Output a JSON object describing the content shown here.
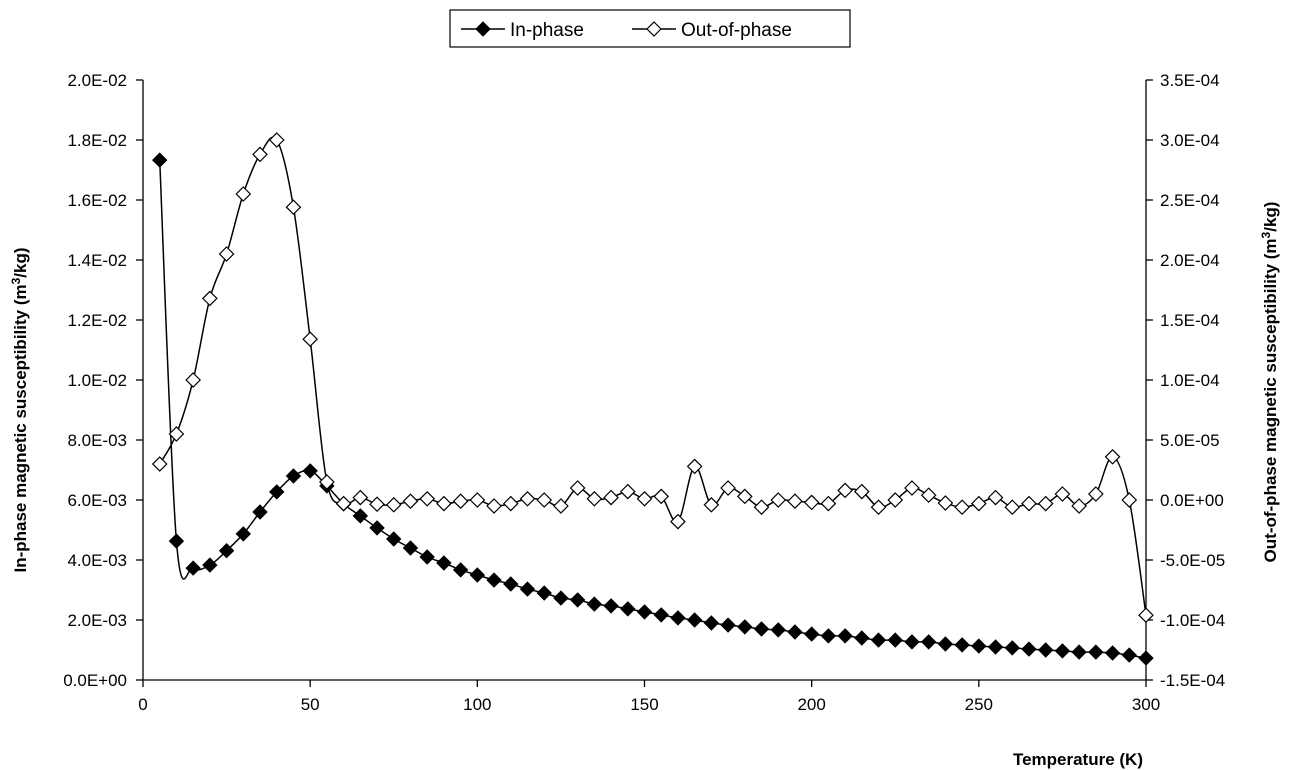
{
  "chart_data": {
    "type": "line",
    "title": "",
    "xlabel": "Temperature (K)",
    "ylabel_left": "In-phase magnetic susceptibility (m",
    "ylabel_left_sup": "3",
    "ylabel_left_end": "/kg)",
    "ylabel_right": "Out-of-phase magnetic susceptibility (m",
    "ylabel_right_sup": "3",
    "ylabel_right_end": "/kg)",
    "xlim": [
      0,
      300
    ],
    "ylim_left": [
      0,
      0.02
    ],
    "ylim_right": [
      -0.00015,
      0.00035
    ],
    "x_ticks": [
      "0",
      "50",
      "100",
      "150",
      "200",
      "250",
      "300"
    ],
    "y_left_ticks": [
      "0.0E+00",
      "2.0E-03",
      "4.0E-03",
      "6.0E-03",
      "8.0E-03",
      "1.0E-02",
      "1.2E-02",
      "1.4E-02",
      "1.6E-02",
      "1.8E-02",
      "2.0E-02"
    ],
    "y_right_ticks": [
      "-1.5E-04",
      "-1.0E-04",
      "-5.0E-05",
      "0.0E+00",
      "5.0E-05",
      "1.0E-04",
      "1.5E-04",
      "2.0E-04",
      "2.5E-04",
      "3.0E-04",
      "3.5E-04"
    ],
    "legend_position": "top-center",
    "grid": false,
    "series": [
      {
        "name": "In-phase",
        "axis": "left",
        "marker": "filled-diamond",
        "x": [
          5,
          10,
          15,
          20,
          25,
          30,
          35,
          40,
          45,
          50,
          55,
          60,
          65,
          70,
          75,
          80,
          85,
          90,
          95,
          100,
          105,
          110,
          115,
          120,
          125,
          130,
          135,
          140,
          145,
          150,
          155,
          160,
          165,
          170,
          175,
          180,
          185,
          190,
          195,
          200,
          205,
          210,
          215,
          220,
          225,
          230,
          235,
          240,
          245,
          250,
          255,
          260,
          265,
          270,
          275,
          280,
          285,
          290,
          295,
          300
        ],
        "values": [
          0.01733,
          0.00463,
          0.00373,
          0.00383,
          0.00431,
          0.00487,
          0.0056,
          0.00627,
          0.0068,
          0.00697,
          0.00647,
          0.00587,
          0.00547,
          0.00507,
          0.0047,
          0.0044,
          0.0041,
          0.0039,
          0.00367,
          0.0035,
          0.00333,
          0.0032,
          0.00303,
          0.0029,
          0.00273,
          0.00267,
          0.00253,
          0.00247,
          0.00237,
          0.00227,
          0.00217,
          0.00207,
          0.002,
          0.0019,
          0.00183,
          0.00177,
          0.0017,
          0.00167,
          0.0016,
          0.00153,
          0.00147,
          0.00147,
          0.0014,
          0.00133,
          0.00133,
          0.00127,
          0.00127,
          0.0012,
          0.00117,
          0.00113,
          0.0011,
          0.00107,
          0.00103,
          0.001,
          0.00097,
          0.00093,
          0.00093,
          0.0009,
          0.00083,
          0.00073
        ]
      },
      {
        "name": "Out-of-phase",
        "axis": "right",
        "marker": "open-diamond",
        "x": [
          5,
          10,
          15,
          20,
          25,
          30,
          35,
          40,
          45,
          50,
          55,
          60,
          65,
          70,
          75,
          80,
          85,
          90,
          95,
          100,
          105,
          110,
          115,
          120,
          125,
          130,
          135,
          140,
          145,
          150,
          155,
          160,
          165,
          170,
          175,
          180,
          185,
          190,
          195,
          200,
          205,
          210,
          215,
          220,
          225,
          230,
          235,
          240,
          245,
          250,
          255,
          260,
          265,
          270,
          275,
          280,
          285,
          290,
          295,
          300
        ],
        "values": [
          3e-05,
          5.5e-05,
          0.0001,
          0.000168,
          0.000205,
          0.000255,
          0.000288,
          0.0003,
          0.000244,
          0.000134,
          1.5e-05,
          -3e-06,
          2e-06,
          -3.5e-06,
          -4e-06,
          -1e-06,
          1e-06,
          -3e-06,
          -1e-06,
          0.0,
          -5e-06,
          -3e-06,
          1e-06,
          0.0,
          -5e-06,
          1e-05,
          1e-06,
          2e-06,
          7e-06,
          1e-06,
          3e-06,
          -1.8e-05,
          2.8e-05,
          -4e-06,
          1e-05,
          3e-06,
          -6e-06,
          0.0,
          -1e-06,
          -2e-06,
          -3e-06,
          8e-06,
          7e-06,
          -6e-06,
          0.0,
          1e-05,
          4e-06,
          -2.5e-06,
          -6e-06,
          -3e-06,
          2e-06,
          -6e-06,
          -3e-06,
          -3e-06,
          5e-06,
          -5e-06,
          5e-06,
          3.6e-05,
          0.0,
          -9.6e-05
        ]
      }
    ]
  }
}
